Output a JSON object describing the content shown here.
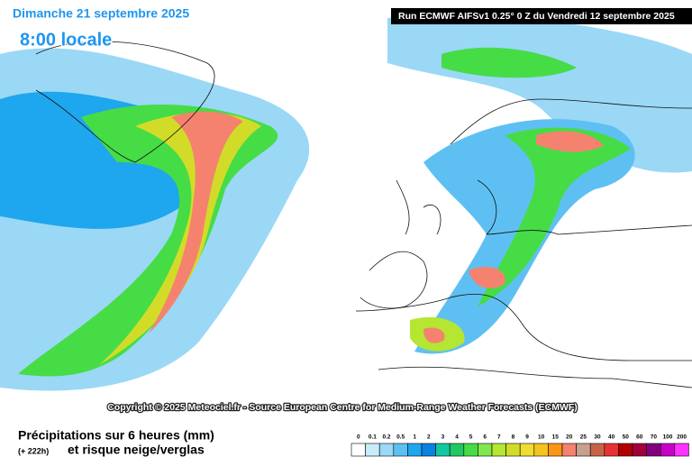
{
  "header": {
    "date": "Dimanche 21 septembre 2025",
    "time": "8:00 locale",
    "run": "Run ECMWF AIFSv1 0.25° 0 Z du Vendredi 12 septembre 2025"
  },
  "copyright": "Copyright © 2025 Meteociel.fr - Source European Centre for Medium-Range Weather Forecasts (ECMWF)",
  "footer": {
    "title": "Précipitations sur 6 heures (mm)",
    "lead": "(+ 222h)",
    "subtitle": "et risque neige/verglas"
  },
  "legend": {
    "levels": [
      {
        "value": 0,
        "color": "#ffffff"
      },
      {
        "value": 0.1,
        "color": "#c8ecfa"
      },
      {
        "value": 0.2,
        "color": "#9ad8f6"
      },
      {
        "value": 0.5,
        "color": "#5ec0f2"
      },
      {
        "value": 1,
        "color": "#1ea6ee"
      },
      {
        "value": 2,
        "color": "#0a82e0"
      },
      {
        "value": 3,
        "color": "#12c8a0"
      },
      {
        "value": 4,
        "color": "#20c860"
      },
      {
        "value": 5,
        "color": "#46dc46"
      },
      {
        "value": 6,
        "color": "#82e650"
      },
      {
        "value": 7,
        "color": "#b4e632"
      },
      {
        "value": 8,
        "color": "#d2dc28"
      },
      {
        "value": 9,
        "color": "#f0dc32"
      },
      {
        "value": 10,
        "color": "#f5c31e"
      },
      {
        "value": 15,
        "color": "#fa9614"
      },
      {
        "value": 20,
        "color": "#f5826e"
      },
      {
        "value": 25,
        "color": "#c8a090"
      },
      {
        "value": 30,
        "color": "#c86446"
      },
      {
        "value": 40,
        "color": "#e63232"
      },
      {
        "value": 50,
        "color": "#b40000"
      },
      {
        "value": 60,
        "color": "#a0003c"
      },
      {
        "value": 70,
        "color": "#82007d"
      },
      {
        "value": 100,
        "color": "#c800c8"
      },
      {
        "value": 200,
        "color": "#ff32ff"
      }
    ]
  }
}
